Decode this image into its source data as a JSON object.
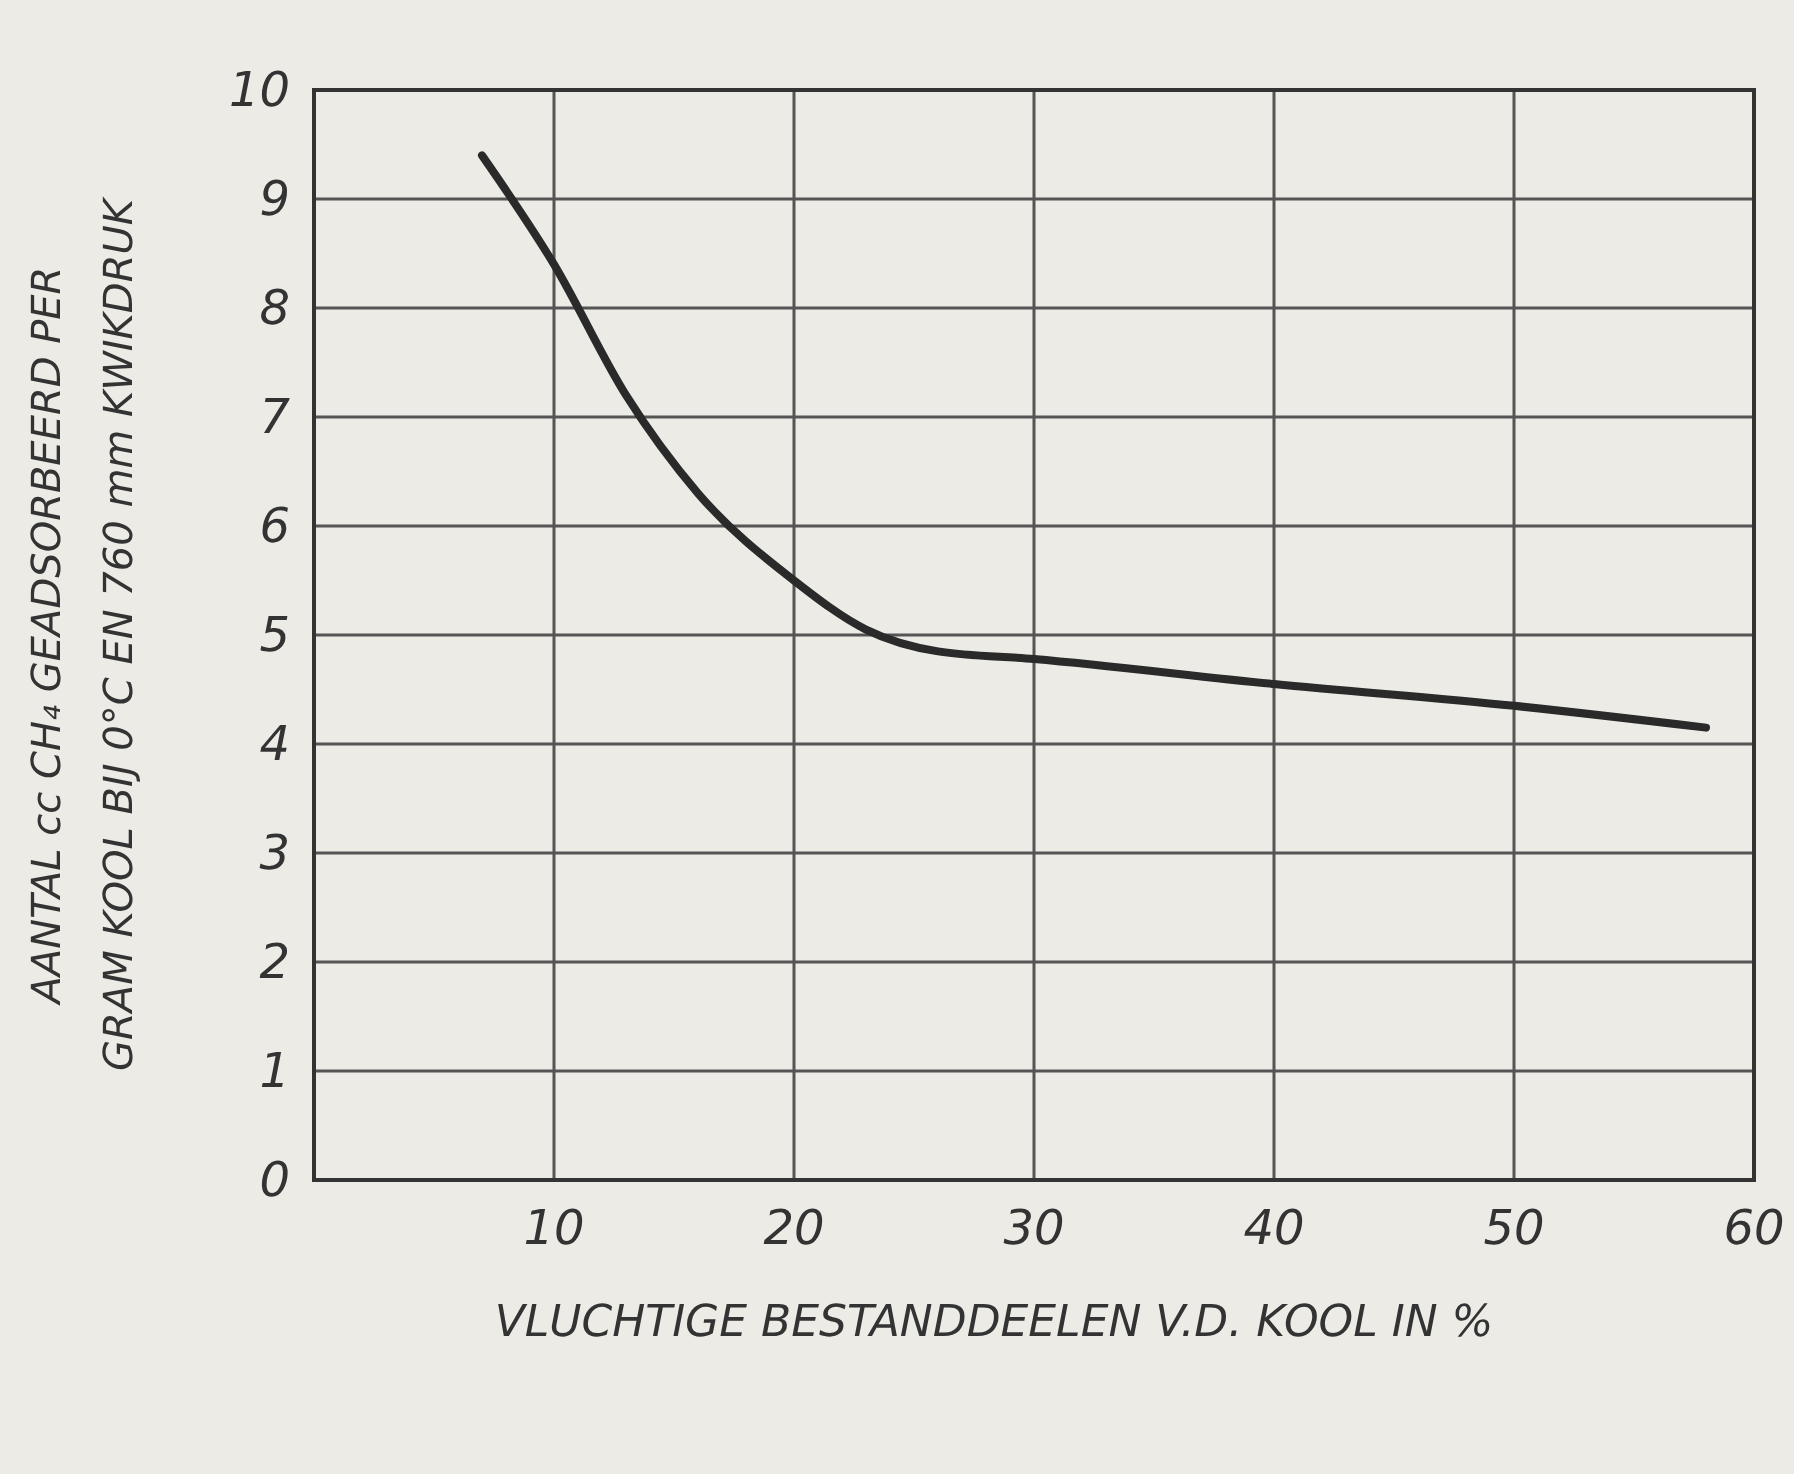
{
  "chart_data": {
    "type": "line",
    "xlabel": "VLUCHTIGE BESTANDDEELEN V.D. KOOL IN %",
    "ylabel": "AANTAL cc CH₄ GEADSORBEERD PER\nGRAM KOOL BIJ 0°C EN 760 mm KWIKDRUK",
    "x": [
      7,
      10,
      13,
      16,
      20,
      23,
      26,
      30,
      40,
      50,
      58
    ],
    "series": [
      {
        "color": "#2a2a2a",
        "values": [
          9.4,
          8.4,
          7.2,
          6.3,
          5.5,
          5.05,
          4.85,
          4.78,
          4.55,
          4.35,
          4.15
        ]
      }
    ],
    "xlim": [
      0,
      60
    ],
    "xticks": [
      {
        "value": 0,
        "label": null
      },
      10,
      20,
      30,
      40,
      50,
      60
    ],
    "ylim": [
      0,
      10
    ],
    "yticks": [
      0,
      1,
      2,
      3,
      4,
      5,
      6,
      7,
      8,
      9,
      10
    ],
    "grid": true,
    "marker": "none",
    "line_style": "solid"
  }
}
